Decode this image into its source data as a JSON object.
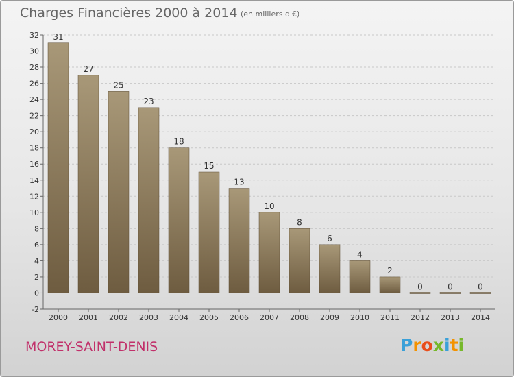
{
  "title": "Charges Financières 2000 à 2014",
  "subtitle": "(en milliers d'€)",
  "town": "MOREY-SAINT-DENIS",
  "logo": {
    "text": "Proxiti",
    "letters": [
      "P",
      "r",
      "o",
      "x",
      "i",
      "t",
      "i"
    ],
    "colors": [
      "#3aa0d8",
      "#f39200",
      "#e94e1b",
      "#76b82a",
      "#3aa0d8",
      "#f39200",
      "#76b82a"
    ]
  },
  "colors": {
    "bar_top": "#a89878",
    "bar_bottom": "#6e5c40",
    "grid": "#c8c8c8",
    "town": "#c1306a"
  },
  "chart_data": {
    "type": "bar",
    "title": "Charges Financières 2000 à 2014",
    "subtitle": "(en milliers d'€)",
    "categories": [
      "2000",
      "2001",
      "2002",
      "2003",
      "2004",
      "2005",
      "2006",
      "2007",
      "2008",
      "2009",
      "2010",
      "2011",
      "2012",
      "2013",
      "2014"
    ],
    "values": [
      31,
      27,
      25,
      23,
      18,
      15,
      13,
      10,
      8,
      6,
      4,
      2,
      0,
      0,
      0
    ],
    "ylim": [
      -2,
      32
    ],
    "yticks": [
      -2,
      0,
      2,
      4,
      6,
      8,
      10,
      12,
      14,
      16,
      18,
      20,
      22,
      24,
      26,
      28,
      30,
      32
    ],
    "grid": true,
    "xlabel": "",
    "ylabel": ""
  }
}
